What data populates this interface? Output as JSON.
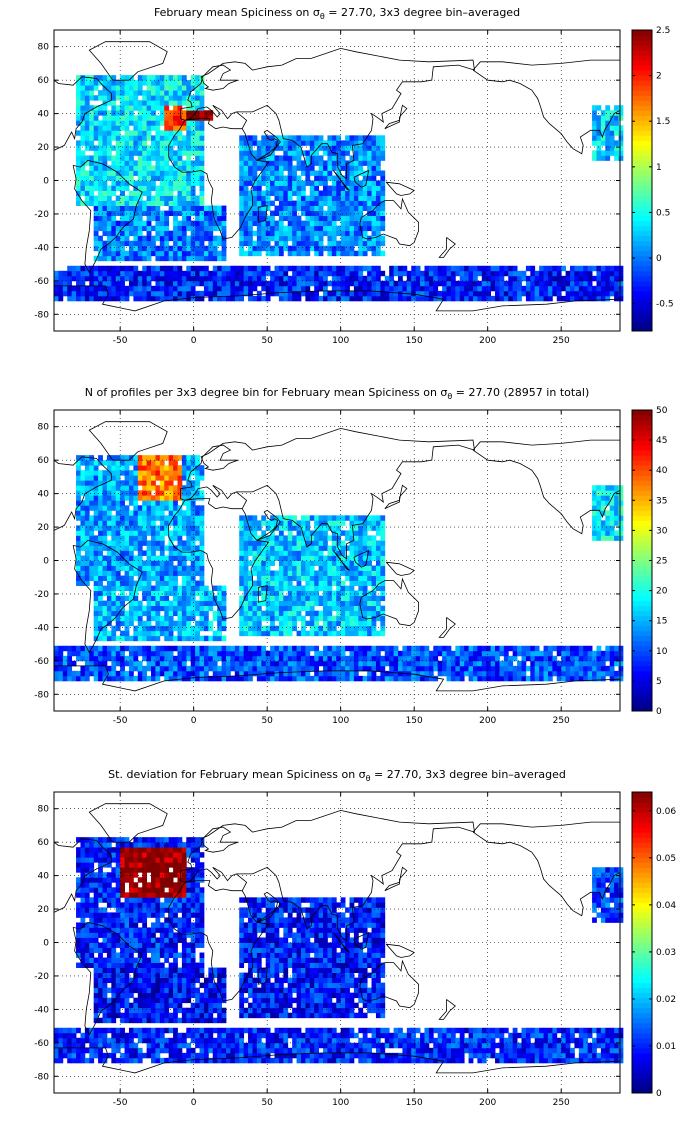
{
  "chart_data": [
    {
      "type": "heatmap",
      "title": {
        "pre": "February mean Spiciness on σ",
        "sub": "θ",
        "post": " = 27.70, 3x3 degree bin–averaged"
      },
      "xlim": [
        -95,
        290
      ],
      "ylim": [
        -90,
        90
      ],
      "x_ticks": [
        "-50",
        "0",
        "50",
        "100",
        "150",
        "200",
        "250"
      ],
      "x_tick_values": [
        -50,
        0,
        50,
        100,
        150,
        200,
        250
      ],
      "y_ticks": [
        "80",
        "60",
        "40",
        "20",
        "0",
        "-20",
        "-40",
        "-60",
        "-80"
      ],
      "y_tick_values": [
        80,
        60,
        40,
        20,
        0,
        -20,
        -40,
        -60,
        -80
      ],
      "grid": true,
      "colorbar": {
        "range": [
          -0.8,
          2.5
        ],
        "ticks": [
          "2.5",
          "2",
          "1.5",
          "1",
          "0.5",
          "0",
          "-0.5"
        ],
        "tick_values": [
          2.5,
          2,
          1.5,
          1,
          0.5,
          0,
          -0.5
        ]
      },
      "regions": [
        {
          "lon": [
            -80,
            5
          ],
          "lat": [
            -15,
            62
          ],
          "value": 0.35
        },
        {
          "lon": [
            -20,
            -5
          ],
          "lat": [
            30,
            45
          ],
          "value": 1.9
        },
        {
          "lon": [
            -5,
            12
          ],
          "lat": [
            34,
            40
          ],
          "value": 2.5
        },
        {
          "lon": [
            -70,
            20
          ],
          "lat": [
            -50,
            -15
          ],
          "value": 0.0
        },
        {
          "lon": [
            30,
            130
          ],
          "lat": [
            -45,
            25
          ],
          "value": 0.05
        },
        {
          "lon": [
            -95,
            290
          ],
          "lat": [
            -72,
            -52
          ],
          "value": -0.3
        },
        {
          "lon": [
            270,
            290
          ],
          "lat": [
            10,
            45
          ],
          "value": 0.3
        }
      ]
    },
    {
      "type": "heatmap",
      "title": {
        "pre": "N of profiles per 3x3 degree bin for February mean Spiciness on σ",
        "sub": "θ",
        "post": " = 27.70 (28957 in total)"
      },
      "xlim": [
        -95,
        290
      ],
      "ylim": [
        -90,
        90
      ],
      "x_ticks": [
        "-50",
        "0",
        "50",
        "100",
        "150",
        "200",
        "250"
      ],
      "x_tick_values": [
        -50,
        0,
        50,
        100,
        150,
        200,
        250
      ],
      "y_ticks": [
        "80",
        "60",
        "40",
        "20",
        "0",
        "-20",
        "-40",
        "-60",
        "-80"
      ],
      "y_tick_values": [
        80,
        60,
        40,
        20,
        0,
        -20,
        -40,
        -60,
        -80
      ],
      "grid": true,
      "colorbar": {
        "range": [
          0,
          50
        ],
        "ticks": [
          "50",
          "45",
          "40",
          "35",
          "30",
          "25",
          "20",
          "15",
          "10",
          "5",
          "0"
        ],
        "tick_values": [
          50,
          45,
          40,
          35,
          30,
          25,
          20,
          15,
          10,
          5,
          0
        ]
      },
      "regions": [
        {
          "lon": [
            -80,
            5
          ],
          "lat": [
            -15,
            62
          ],
          "value": 14
        },
        {
          "lon": [
            -40,
            -10
          ],
          "lat": [
            35,
            62
          ],
          "value": 38
        },
        {
          "lon": [
            -70,
            20
          ],
          "lat": [
            -50,
            -15
          ],
          "value": 15
        },
        {
          "lon": [
            30,
            130
          ],
          "lat": [
            -45,
            25
          ],
          "value": 16
        },
        {
          "lon": [
            -95,
            290
          ],
          "lat": [
            -72,
            -52
          ],
          "value": 10
        },
        {
          "lon": [
            270,
            290
          ],
          "lat": [
            10,
            45
          ],
          "value": 18
        }
      ]
    },
    {
      "type": "heatmap",
      "title": {
        "pre": "St. deviation for February mean Spiciness on σ",
        "sub": "θ",
        "post": " = 27.70, 3x3 degree bin–averaged"
      },
      "xlim": [
        -95,
        290
      ],
      "ylim": [
        -90,
        90
      ],
      "x_ticks": [
        "-50",
        "0",
        "50",
        "100",
        "150",
        "200",
        "250"
      ],
      "x_tick_values": [
        -50,
        0,
        50,
        100,
        150,
        200,
        250
      ],
      "y_ticks": [
        "80",
        "60",
        "40",
        "20",
        "0",
        "-20",
        "-40",
        "-60",
        "-80"
      ],
      "y_tick_values": [
        80,
        60,
        40,
        20,
        0,
        -20,
        -40,
        -60,
        -80
      ],
      "grid": true,
      "colorbar": {
        "range": [
          0,
          0.064
        ],
        "ticks": [
          "0.06",
          "0.05",
          "0.04",
          "0.03",
          "0.02",
          "0.01",
          "0"
        ],
        "tick_values": [
          0.06,
          0.05,
          0.04,
          0.03,
          0.02,
          0.01,
          0
        ]
      },
      "regions": [
        {
          "lon": [
            -80,
            5
          ],
          "lat": [
            -15,
            62
          ],
          "value": 0.01
        },
        {
          "lon": [
            -50,
            -5
          ],
          "lat": [
            25,
            55
          ],
          "value": 0.063
        },
        {
          "lon": [
            -70,
            20
          ],
          "lat": [
            -50,
            -15
          ],
          "value": 0.008
        },
        {
          "lon": [
            30,
            130
          ],
          "lat": [
            -45,
            25
          ],
          "value": 0.009
        },
        {
          "lon": [
            -95,
            290
          ],
          "lat": [
            -72,
            -52
          ],
          "value": 0.01
        },
        {
          "lon": [
            270,
            290
          ],
          "lat": [
            10,
            45
          ],
          "value": 0.012
        }
      ]
    }
  ]
}
